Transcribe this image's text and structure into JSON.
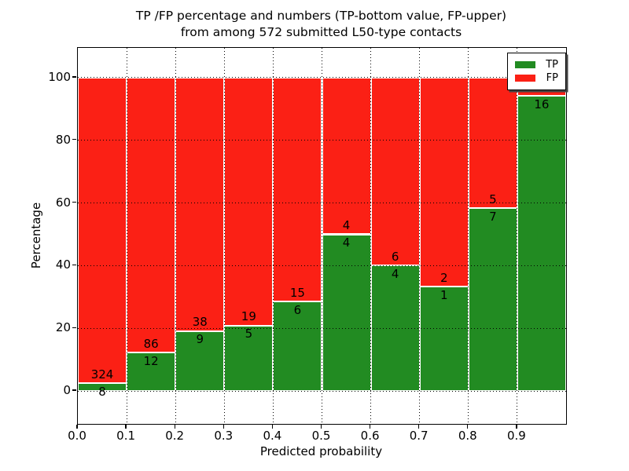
{
  "chart_data": {
    "type": "bar",
    "subtype": "stacked-percentage-histogram",
    "title_line1": "TP /FP percentage and numbers (TP-bottom value, FP-upper)",
    "title_line2": "from among 572 submitted L50-type contacts",
    "xlabel": "Predicted probability",
    "ylabel": "Percentage",
    "xlim": [
      0.0,
      1.0
    ],
    "ylim": [
      -10.5,
      109.5
    ],
    "grid": "dotted black, on top of bars",
    "x_ticks": [
      "0.0",
      "0.1",
      "0.2",
      "0.3",
      "0.4",
      "0.5",
      "0.6",
      "0.7",
      "0.8",
      "0.9"
    ],
    "y_ticks": [
      "0",
      "20",
      "40",
      "60",
      "80",
      "100"
    ],
    "annotation_note": "each bar annotated with FP count above boundary and TP count below boundary",
    "bins": [
      {
        "range": [
          0.0,
          0.1
        ],
        "tp": 8,
        "fp": 324
      },
      {
        "range": [
          0.1,
          0.2
        ],
        "tp": 12,
        "fp": 86
      },
      {
        "range": [
          0.2,
          0.3
        ],
        "tp": 9,
        "fp": 38
      },
      {
        "range": [
          0.3,
          0.4
        ],
        "tp": 5,
        "fp": 19
      },
      {
        "range": [
          0.4,
          0.5
        ],
        "tp": 6,
        "fp": 15
      },
      {
        "range": [
          0.5,
          0.6
        ],
        "tp": 4,
        "fp": 4
      },
      {
        "range": [
          0.6,
          0.7
        ],
        "tp": 4,
        "fp": 6
      },
      {
        "range": [
          0.7,
          0.8
        ],
        "tp": 1,
        "fp": 2
      },
      {
        "range": [
          0.8,
          0.9
        ],
        "tp": 7,
        "fp": 5
      },
      {
        "range": [
          0.9,
          1.0
        ],
        "tp": 16,
        "fp": 1
      }
    ],
    "series": [
      {
        "name": "TP",
        "color": "#228b22",
        "position": "bottom"
      },
      {
        "name": "FP",
        "color": "#fb2015",
        "position": "top"
      }
    ],
    "legend": {
      "position": "upper right",
      "shadow": true
    }
  }
}
